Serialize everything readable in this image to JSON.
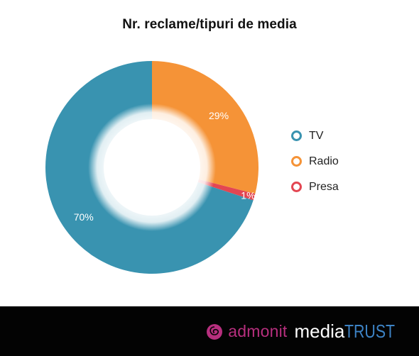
{
  "chart_data": {
    "type": "pie",
    "title": "Nr. reclame/tipuri de media",
    "donut": true,
    "legend_position": "right",
    "slices": [
      {
        "label": "TV",
        "value": 70,
        "display": "70%",
        "color": "#3993b0"
      },
      {
        "label": "Radio",
        "value": 29,
        "display": "29%",
        "color": "#f59337"
      },
      {
        "label": "Presa",
        "value": 1,
        "display": "1%",
        "color": "#e34652"
      }
    ]
  },
  "footer": {
    "admonit": "admonit",
    "mediatrust_media": "media",
    "mediatrust_trust": "TRUST"
  },
  "colors": {
    "footer_bg": "#030303",
    "admonit_brand": "#b72f7e",
    "trust_brand": "#3d83c5"
  }
}
